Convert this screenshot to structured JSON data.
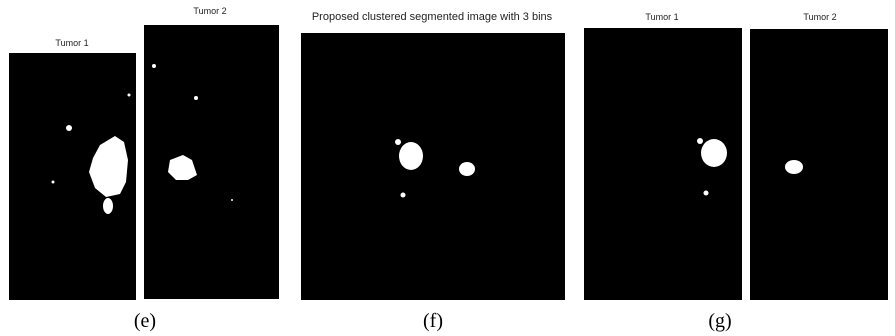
{
  "panels": [
    {
      "caption": "(e)",
      "images": [
        {
          "label": "Tumor 1"
        },
        {
          "label": "Tumor 2"
        }
      ]
    },
    {
      "caption": "(f)",
      "title": "Proposed clustered segmented image with 3 bins"
    },
    {
      "caption": "(g)",
      "images": [
        {
          "label": "Tumor 1"
        },
        {
          "label": "Tumor 2"
        }
      ]
    }
  ]
}
